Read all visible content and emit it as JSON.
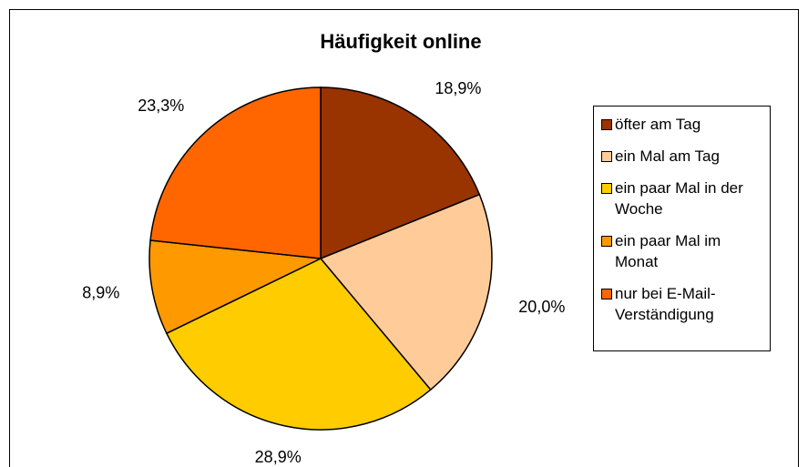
{
  "chart_data": {
    "type": "pie",
    "title": "Häufigkeit online",
    "categories": [
      "öfter am Tag",
      "ein Mal am Tag",
      "ein paar Mal in der Woche",
      "ein paar Mal im Monat",
      "nur bei E-Mail-Verständigung"
    ],
    "values": [
      18.9,
      20.0,
      28.9,
      8.9,
      23.3
    ],
    "value_labels": [
      "18,9%",
      "20,0%",
      "28,9%",
      "8,9%",
      "23,3%"
    ],
    "colors": [
      "#993300",
      "#ffcc99",
      "#ffcc00",
      "#ff9900",
      "#ff6600"
    ],
    "legend": "right"
  }
}
